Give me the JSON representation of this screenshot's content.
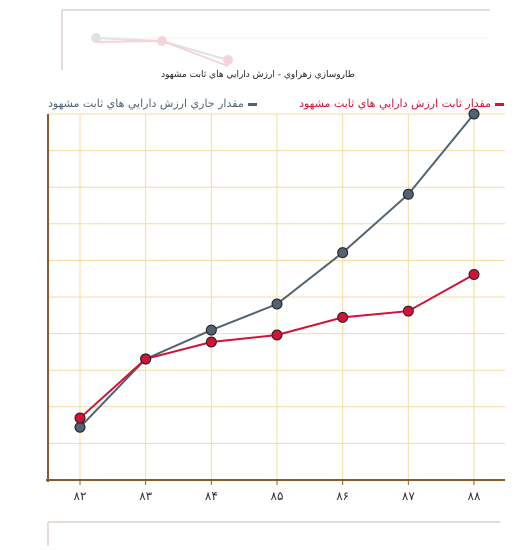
{
  "chart_data": {
    "type": "line",
    "title": "طاروسازي زهراوي - ارزش دارايي هاي ثابت مشهود",
    "categories": [
      "۸۲",
      "۸۳",
      "۸۴",
      "۸۵",
      "۸۶",
      "۸۷",
      "۸۸"
    ],
    "ylim": [
      0,
      520
    ],
    "grid": true,
    "legend_position": "top",
    "series": [
      {
        "name": "مقدار جاري ارزش دارايي هاي ثابت مشهود",
        "color": "#4f6372",
        "values": [
          75,
          172,
          213,
          250,
          323,
          406,
          520
        ]
      },
      {
        "name": "مقدار ثابت ارزش دارايي هاي ثابت مشهود",
        "color": "#d21237",
        "values": [
          88,
          172,
          196,
          206,
          231,
          240,
          292
        ]
      }
    ]
  }
}
